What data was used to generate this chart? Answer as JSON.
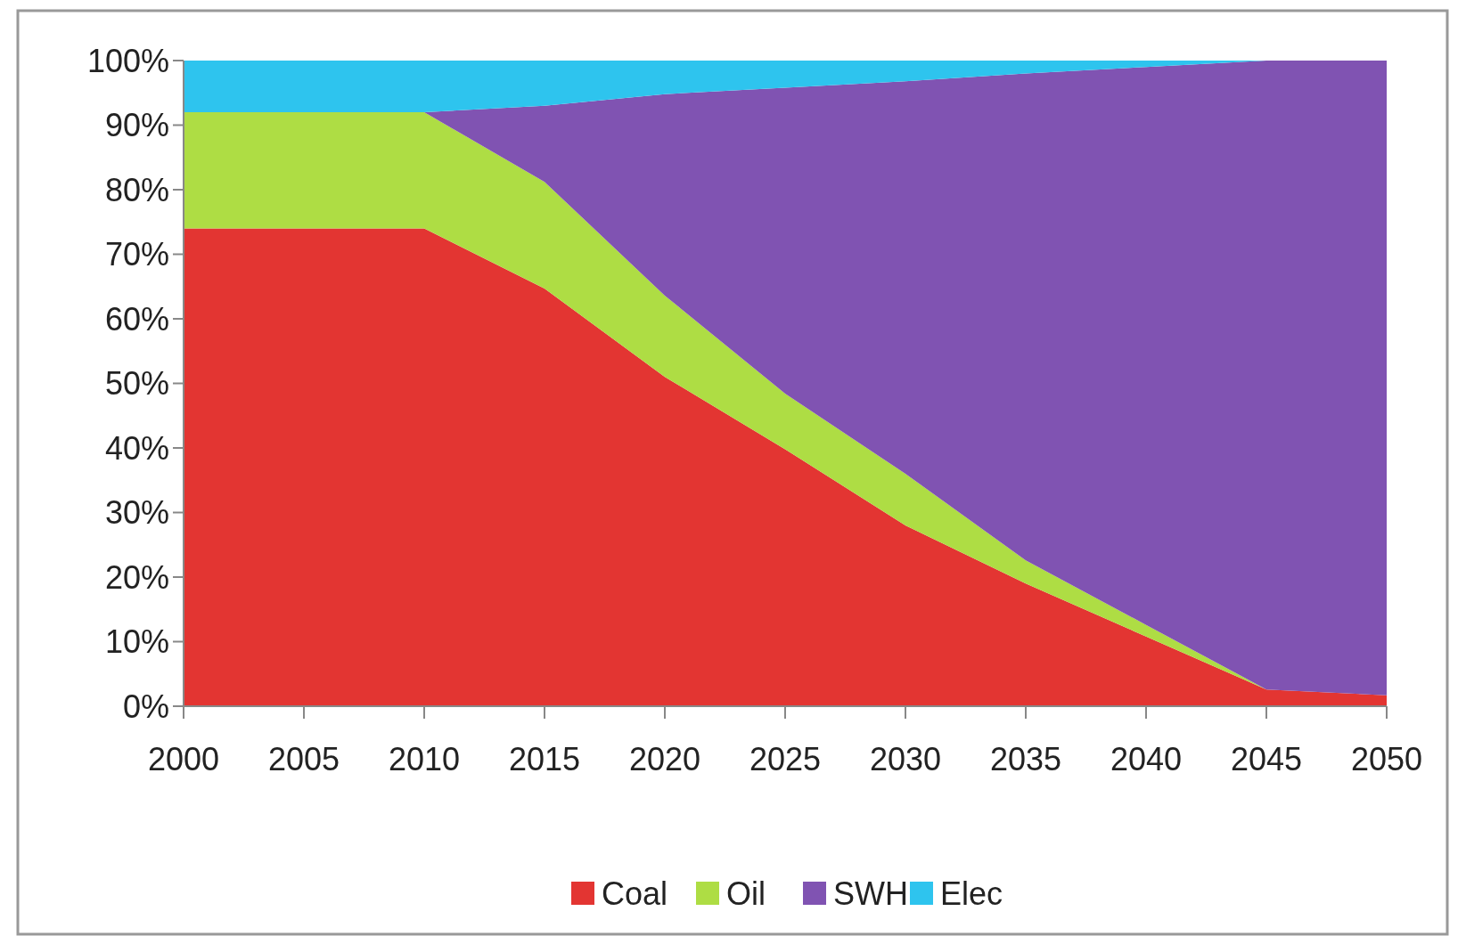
{
  "chart_data": {
    "type": "area",
    "stacked": true,
    "x": [
      2000,
      2005,
      2010,
      2015,
      2020,
      2025,
      2030,
      2035,
      2040,
      2045,
      2050
    ],
    "series": [
      {
        "name": "Coal",
        "color": "#e33532",
        "values": [
          74,
          74,
          74,
          64.7,
          51,
          39.8,
          28,
          19,
          10.8,
          2.6,
          1.7
        ]
      },
      {
        "name": "Oil",
        "color": "#aedd44",
        "values": [
          18,
          18,
          18,
          16.5,
          12.6,
          8.6,
          8,
          3.6,
          1.8,
          0,
          0
        ]
      },
      {
        "name": "SWH",
        "color": "#8053b2",
        "values": [
          0,
          0,
          0,
          11.8,
          31.2,
          47.4,
          60.8,
          75.4,
          86.4,
          97.4,
          98.3
        ]
      },
      {
        "name": "Elec",
        "color": "#2ec4ee",
        "values": [
          8,
          8,
          8,
          7,
          5.2,
          4.2,
          3.2,
          2,
          1,
          0,
          0
        ]
      }
    ],
    "xlim": [
      2000,
      2050
    ],
    "xticks": [
      2000,
      2005,
      2010,
      2015,
      2020,
      2025,
      2030,
      2035,
      2040,
      2045,
      2050
    ],
    "ylim": [
      0,
      100
    ],
    "yticks": [
      {
        "value": 0,
        "label": "0%"
      },
      {
        "value": 10,
        "label": "10%"
      },
      {
        "value": 20,
        "label": "20%"
      },
      {
        "value": 30,
        "label": "30%"
      },
      {
        "value": 40,
        "label": "40%"
      },
      {
        "value": 50,
        "label": "50%"
      },
      {
        "value": 60,
        "label": "60%"
      },
      {
        "value": 70,
        "label": "70%"
      },
      {
        "value": 80,
        "label": "80%"
      },
      {
        "value": 90,
        "label": "90%"
      },
      {
        "value": 100,
        "label": "100%"
      }
    ],
    "grid": false,
    "legend": "bottom"
  }
}
